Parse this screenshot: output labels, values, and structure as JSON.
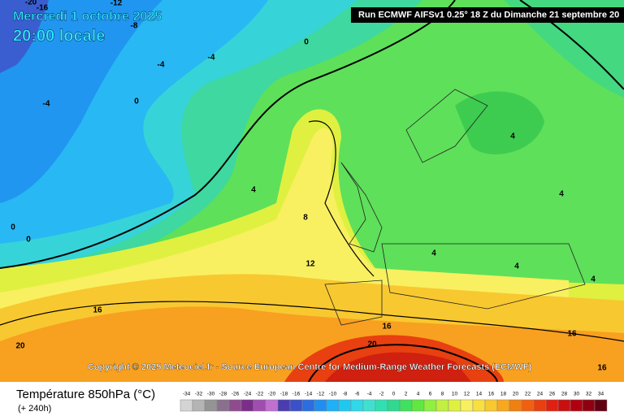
{
  "header": {
    "date": "Mercredi 1 octobre 2025",
    "time": "20:00 locale",
    "run": "Run ECMWF AIFSv1 0.25° 18 Z du Dimanche 21 septembre 20"
  },
  "copyright": "Copyright © 2025 Meteociel.fr - Source European Centre for Medium-Range Weather Forecasts (ECMWF)",
  "legend": {
    "title": "Température 850hPa (°C)",
    "subtitle": "(+ 240h)",
    "scale": [
      -34,
      -32,
      -30,
      -28,
      -26,
      -24,
      -22,
      -20,
      -18,
      -16,
      -14,
      -12,
      -10,
      -8,
      -6,
      -4,
      -2,
      0,
      2,
      4,
      6,
      8,
      10,
      12,
      14,
      16,
      18,
      20,
      22,
      24,
      26,
      28,
      30,
      32,
      34
    ],
    "colors": [
      "#d4d4d4",
      "#b4b4b4",
      "#949494",
      "#8a708e",
      "#8e4c8e",
      "#7a2e8a",
      "#a04db0",
      "#c070d0",
      "#4b3cb0",
      "#3c50c8",
      "#2a6ee0",
      "#1f8ef0",
      "#1eb0f8",
      "#20c8f0",
      "#30d8e8",
      "#40e0d0",
      "#30e0b0",
      "#30d890",
      "#40e060",
      "#60e840",
      "#90f040",
      "#c0f040",
      "#e0f040",
      "#f8f060",
      "#f8e040",
      "#f8c830",
      "#f8a820",
      "#f08010",
      "#f06010",
      "#e84010",
      "#e02010",
      "#c81010",
      "#b00010",
      "#900010",
      "#600010"
    ]
  },
  "contour_labels": [
    -20,
    -16,
    -12,
    -8,
    0,
    -4,
    -4,
    -4,
    0,
    4,
    8,
    12,
    16,
    20,
    16,
    20,
    4,
    4,
    4,
    4,
    4,
    16,
    16,
    0,
    0
  ]
}
